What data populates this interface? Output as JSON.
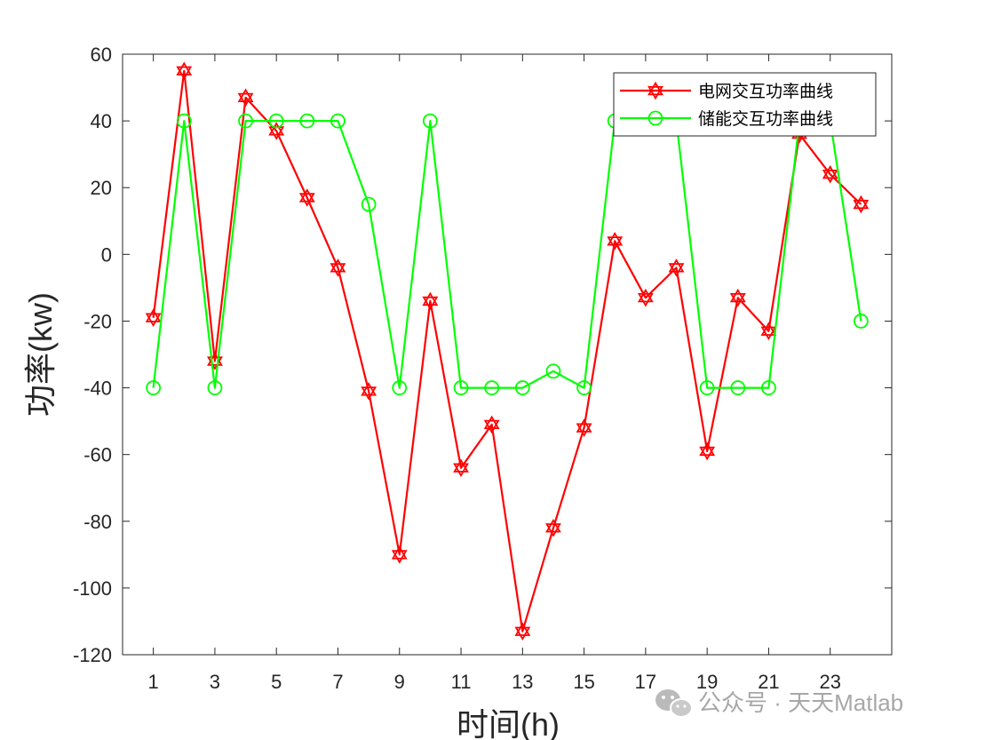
{
  "chart_data": {
    "type": "line",
    "title": "",
    "xlabel": "时间(h)",
    "ylabel": "功率(kw)",
    "xlim": [
      0,
      25
    ],
    "ylim": [
      -120,
      60
    ],
    "x_ticks": [
      "1",
      "3",
      "5",
      "7",
      "9",
      "11",
      "13",
      "15",
      "17",
      "19",
      "21",
      "23"
    ],
    "y_ticks": [
      "60",
      "40",
      "20",
      "0",
      "-20",
      "-40",
      "-60",
      "-80",
      "-100",
      "-120"
    ],
    "x": [
      1,
      2,
      3,
      4,
      5,
      6,
      7,
      8,
      9,
      10,
      11,
      12,
      13,
      14,
      15,
      16,
      17,
      18,
      19,
      20,
      21,
      22,
      23,
      24
    ],
    "grid": false,
    "legend_position": "top-right",
    "series": [
      {
        "name": "电网交互功率曲线",
        "color": "#ff0000",
        "marker": "hexagram",
        "values": [
          -19,
          55,
          -32,
          47,
          37,
          17,
          -4,
          -41,
          -90,
          -14,
          -64,
          -51,
          -113,
          -82,
          -52,
          4,
          -13,
          -4,
          -59,
          -13,
          -23,
          36,
          24,
          15
        ]
      },
      {
        "name": "储能交互功率曲线",
        "color": "#00ff00",
        "marker": "circle",
        "values": [
          -40,
          40,
          -40,
          40,
          40,
          40,
          40,
          15,
          -40,
          40,
          -40,
          -40,
          -40,
          -35,
          -40,
          40,
          40,
          40,
          -40,
          -40,
          -40,
          40,
          40,
          -20
        ]
      }
    ]
  },
  "watermark": {
    "text": "公众号 · 天天Matlab",
    "icon": "wechat-icon"
  }
}
